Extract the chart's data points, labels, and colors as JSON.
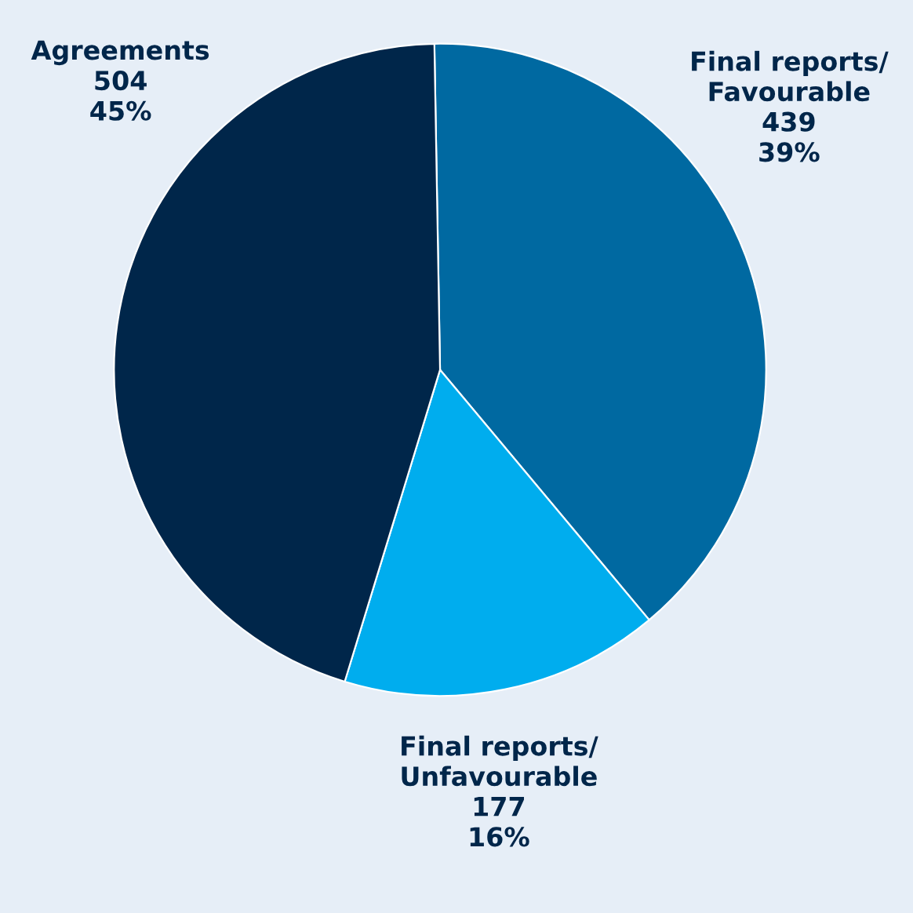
{
  "chart_data": {
    "type": "pie",
    "categories": [
      "Final reports/\nFavourable",
      "Final reports/\nUnfavourable",
      "Agreements"
    ],
    "values": [
      439,
      177,
      504
    ],
    "colors": [
      "#0069a1",
      "#00adee",
      "#00264a"
    ],
    "value_labels": [
      "439\n39%",
      "177\n16%",
      "504\n45%"
    ]
  }
}
